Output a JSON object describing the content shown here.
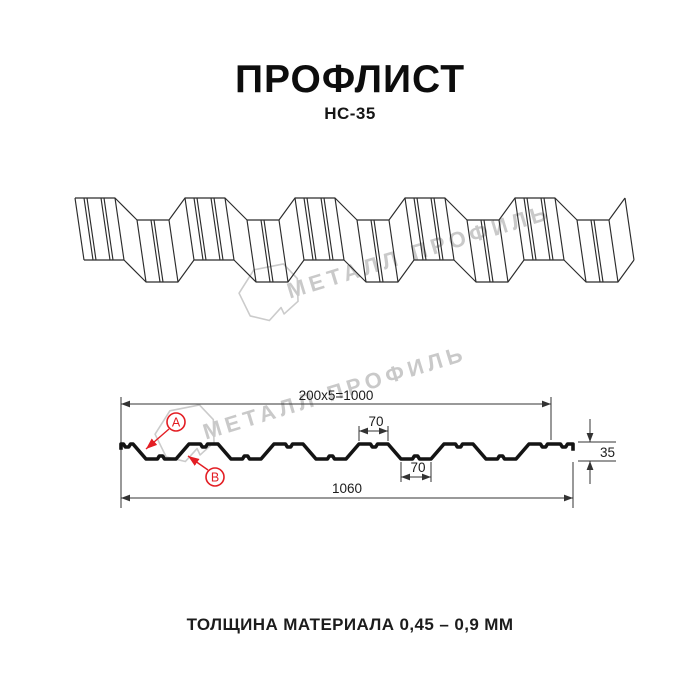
{
  "header": {
    "title": "ПРОФЛИСТ",
    "subtitle": "НС-35"
  },
  "watermark": {
    "text": "МЕТАЛЛ ПРОФИЛЬ"
  },
  "drawing": {
    "dim_working_width": "200x5=1000",
    "dim_flange_width": "70",
    "dim_trough_width": "70",
    "dim_total_width": "1060",
    "dim_height": "35",
    "label_a": "A",
    "label_b": "B"
  },
  "colors": {
    "accent_red": "#e31e24",
    "watermark_gray": "#c9c9c9",
    "line_dark": "#141414"
  },
  "footer": {
    "material_thickness": "ТОЛЩИНА МАТЕРИАЛА 0,45 – 0,9 ММ"
  }
}
